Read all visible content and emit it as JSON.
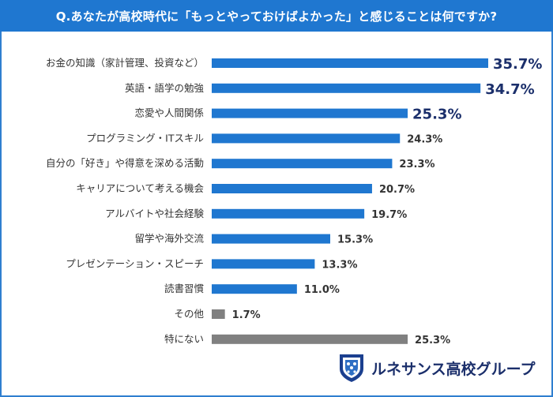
{
  "title": "Q.あなたが高校時代に「もっとやっておけばよかった」と感じることは何ですか?",
  "logo": {
    "name": "ルネサンス高校グループ",
    "icon": "shield-icon"
  },
  "colors": {
    "header": "#1f77d0",
    "bar_primary": "#1f77d0",
    "bar_other": "#808080",
    "highlight_label": "#1b2f6b",
    "label": "#333333"
  },
  "chart_data": {
    "type": "bar",
    "orientation": "horizontal",
    "categories": [
      "お金の知識（家計管理、投資など）",
      "英語・語学の勉強",
      "恋愛や人間関係",
      "プログラミング・ITスキル",
      "自分の「好き」や得意を深める活動",
      "キャリアについて考える機会",
      "アルバイトや社会経験",
      "留学や海外交流",
      "プレゼンテーション・スピーチ",
      "読書習慣",
      "その他",
      "特にない"
    ],
    "values": [
      35.7,
      34.7,
      25.3,
      24.3,
      23.3,
      20.7,
      19.7,
      15.3,
      13.3,
      11.0,
      1.7,
      25.3
    ],
    "value_labels": [
      "35.7%",
      "34.7%",
      "25.3%",
      "24.3%",
      "23.3%",
      "20.7%",
      "19.7%",
      "15.3%",
      "13.3%",
      "11.0%",
      "1.7%",
      "25.3%"
    ],
    "highlighted": [
      true,
      true,
      true,
      false,
      false,
      false,
      false,
      false,
      false,
      false,
      false,
      false
    ],
    "gray": [
      false,
      false,
      false,
      false,
      false,
      false,
      false,
      false,
      false,
      false,
      true,
      true
    ],
    "unit": "%",
    "xlim": [
      0,
      35.7
    ],
    "grid": false,
    "legend": "none"
  }
}
